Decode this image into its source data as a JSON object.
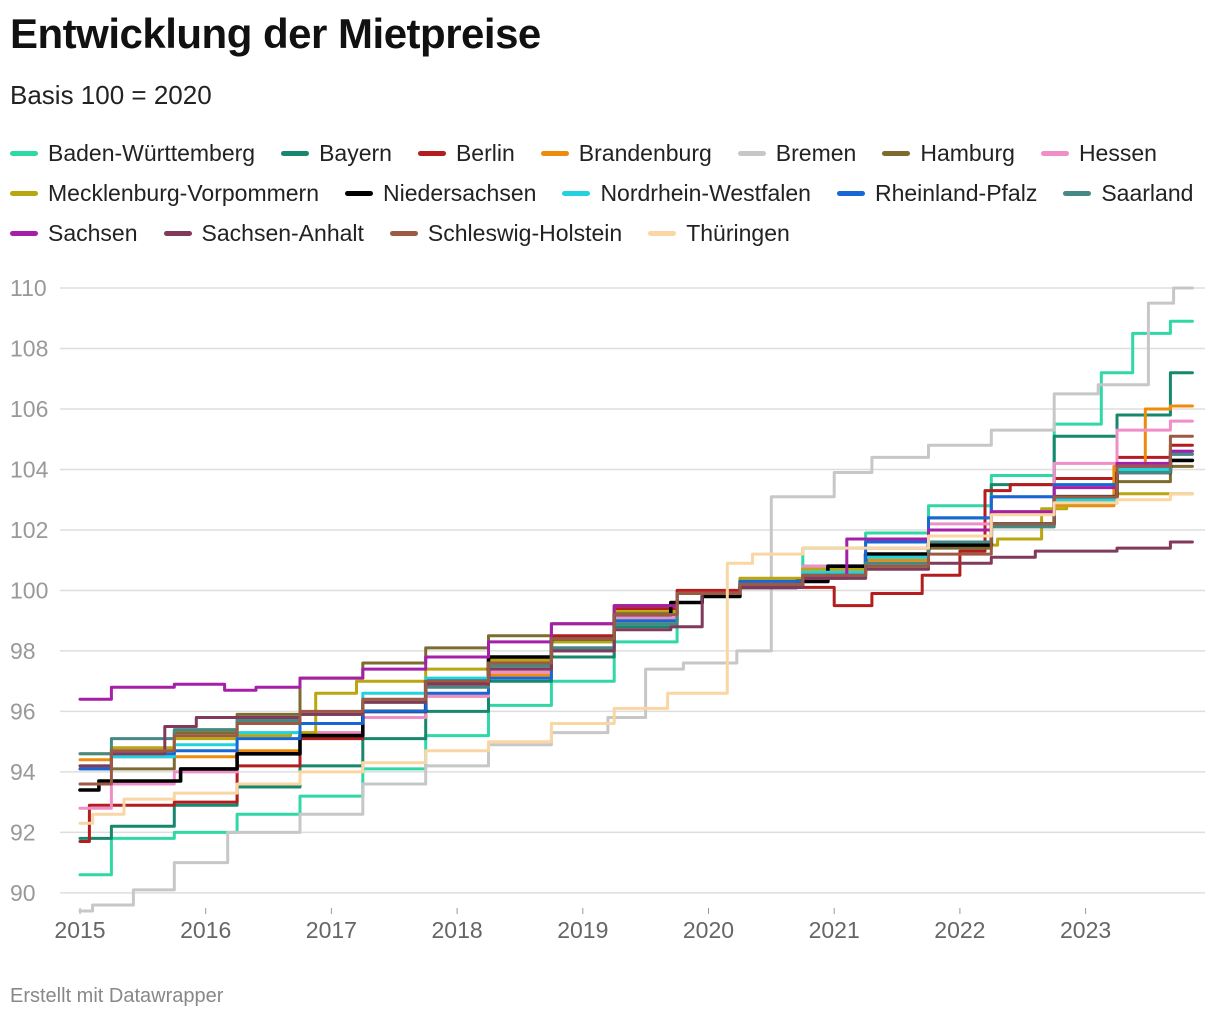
{
  "title": "Entwicklung der Mietpreise",
  "subtitle": "Basis 100 = 2020",
  "footer": "Erstellt mit Datawrapper",
  "chart_data": {
    "type": "line",
    "grid": true,
    "legend_position": "top",
    "ylim": [
      89.5,
      110
    ],
    "yticks": [
      90,
      92,
      94,
      96,
      98,
      100,
      102,
      104,
      106,
      108,
      110
    ],
    "xlim": [
      2015,
      2023.95
    ],
    "xticks": [
      2015,
      2016,
      2017,
      2018,
      2019,
      2020,
      2021,
      2022,
      2023
    ],
    "series": [
      {
        "name": "Baden-Württemberg",
        "color": "#2fd8a5",
        "x": [
          2015,
          2015.5,
          2016,
          2016.5,
          2017,
          2017.5,
          2018,
          2018.5,
          2019,
          2019.5,
          2020,
          2020.5,
          2021,
          2021.5,
          2022,
          2022.5,
          2023,
          2023.25,
          2023.5,
          2023.85
        ],
        "y": [
          90.6,
          91.8,
          92.0,
          92.6,
          93.2,
          94.1,
          95.2,
          96.2,
          97.0,
          98.3,
          99.9,
          100.3,
          101.4,
          101.9,
          102.8,
          103.8,
          105.5,
          107.2,
          108.5,
          108.9
        ]
      },
      {
        "name": "Bayern",
        "color": "#17876d",
        "x": [
          2015,
          2015.5,
          2016,
          2016.5,
          2017,
          2017.5,
          2018,
          2018.5,
          2019,
          2019.5,
          2020,
          2020.5,
          2021,
          2021.5,
          2022,
          2022.5,
          2023,
          2023.5,
          2023.85
        ],
        "y": [
          91.8,
          92.2,
          92.9,
          93.5,
          94.2,
          95.1,
          96.0,
          97.0,
          97.8,
          98.8,
          99.9,
          100.3,
          100.8,
          101.4,
          102.4,
          103.5,
          105.1,
          105.8,
          107.2
        ]
      },
      {
        "name": "Berlin",
        "color": "#b31d1d",
        "x": [
          2015,
          2015.15,
          2015.5,
          2016,
          2016.5,
          2017,
          2017.5,
          2018,
          2018.5,
          2019,
          2019.5,
          2020,
          2020.5,
          2020.9,
          2021.1,
          2021.5,
          2021.9,
          2022.1,
          2022.3,
          2022.5,
          2023,
          2023.5,
          2023.85
        ],
        "y": [
          91.7,
          92.9,
          92.9,
          93.0,
          94.2,
          95.1,
          95.8,
          97.0,
          97.8,
          98.5,
          99.4,
          100.0,
          100.2,
          100.1,
          99.5,
          99.9,
          100.5,
          101.3,
          103.3,
          103.5,
          103.7,
          104.4,
          104.8
        ]
      },
      {
        "name": "Brandenburg",
        "color": "#ef8b0c",
        "x": [
          2015,
          2015.5,
          2016,
          2016.5,
          2017,
          2017.5,
          2018,
          2018.5,
          2019,
          2019.5,
          2020,
          2020.5,
          2021,
          2021.5,
          2022,
          2022.5,
          2023,
          2023.45,
          2023.5,
          2023.85
        ],
        "y": [
          94.4,
          94.5,
          94.5,
          94.7,
          95.3,
          95.8,
          96.5,
          97.2,
          98.0,
          99.0,
          99.9,
          100.2,
          100.6,
          101.0,
          101.6,
          102.2,
          102.8,
          104.1,
          106.0,
          106.1
        ]
      },
      {
        "name": "Bremen",
        "color": "#c7c7c7",
        "x": [
          2015,
          2015.2,
          2015.65,
          2015.85,
          2016.5,
          2017,
          2017.5,
          2018,
          2018.5,
          2019,
          2019.4,
          2019.6,
          2020,
          2020.45,
          2020.55,
          2020.9,
          2021.1,
          2021.5,
          2022,
          2022.5,
          2023,
          2023.2,
          2023.45,
          2023.55,
          2023.85
        ],
        "y": [
          89.4,
          89.6,
          90.1,
          91.0,
          92.0,
          92.6,
          93.6,
          94.2,
          94.9,
          95.3,
          95.8,
          97.4,
          97.6,
          98.0,
          103.1,
          103.1,
          103.9,
          104.4,
          104.8,
          105.3,
          106.5,
          106.8,
          106.8,
          109.5,
          110.0
        ]
      },
      {
        "name": "Hamburg",
        "color": "#7d6b30",
        "x": [
          2015,
          2015.5,
          2016,
          2016.5,
          2017,
          2017.5,
          2018,
          2018.5,
          2019,
          2019.5,
          2020,
          2020.5,
          2021,
          2021.5,
          2022,
          2022.5,
          2023,
          2023.5,
          2023.85
        ],
        "y": [
          94.1,
          94.1,
          95.3,
          95.9,
          97.1,
          97.6,
          98.1,
          98.5,
          98.9,
          99.5,
          99.9,
          100.1,
          100.5,
          100.8,
          101.4,
          102.6,
          103.0,
          103.6,
          104.1
        ]
      },
      {
        "name": "Hessen",
        "color": "#f08fc7",
        "x": [
          2015,
          2015.5,
          2016,
          2016.5,
          2017,
          2017.5,
          2018,
          2018.5,
          2019,
          2019.5,
          2020,
          2020.5,
          2021,
          2021.5,
          2022,
          2022.5,
          2023,
          2023.5,
          2023.85
        ],
        "y": [
          92.8,
          93.6,
          94.0,
          94.6,
          95.3,
          95.8,
          96.5,
          97.3,
          98.3,
          99.1,
          99.9,
          100.2,
          100.8,
          101.4,
          102.2,
          103.1,
          104.2,
          105.3,
          105.6
        ]
      },
      {
        "name": "Mecklenburg-Vorpommern",
        "color": "#b9a610",
        "x": [
          2015,
          2015.5,
          2016,
          2016.5,
          2016.85,
          2016.9,
          2017.5,
          2018,
          2018.5,
          2019,
          2019.5,
          2020,
          2020.5,
          2021,
          2021.5,
          2022,
          2022.6,
          2022.7,
          2023,
          2023.5,
          2023.85
        ],
        "y": [
          94.6,
          94.8,
          95.1,
          95.2,
          95.3,
          96.6,
          97.0,
          97.4,
          97.7,
          98.3,
          99.3,
          99.9,
          100.4,
          100.7,
          101.1,
          101.5,
          101.7,
          102.7,
          102.9,
          103.2,
          103.2
        ]
      },
      {
        "name": "Niedersachsen",
        "color": "#000000",
        "x": [
          2015,
          2015.3,
          2015.6,
          2016,
          2016.5,
          2017,
          2017.5,
          2018,
          2018.5,
          2019,
          2019.5,
          2019.9,
          2020,
          2020.5,
          2020.9,
          2021,
          2021.5,
          2022,
          2022.5,
          2023,
          2023.5,
          2023.85
        ],
        "y": [
          93.4,
          93.7,
          93.7,
          94.1,
          94.6,
          95.2,
          96.0,
          97.0,
          97.8,
          98.4,
          99.2,
          99.6,
          99.8,
          100.1,
          100.3,
          100.8,
          101.2,
          101.5,
          102.2,
          103.1,
          103.9,
          104.3
        ]
      },
      {
        "name": "Nordrhein-Westfalen",
        "color": "#21d3de",
        "x": [
          2015,
          2015.5,
          2016,
          2016.5,
          2017,
          2017.5,
          2018,
          2018.5,
          2019,
          2019.5,
          2020,
          2020.5,
          2021,
          2021.5,
          2022,
          2022.5,
          2023,
          2023.5,
          2023.85
        ],
        "y": [
          94.2,
          94.5,
          94.9,
          95.3,
          95.9,
          96.6,
          97.1,
          97.6,
          98.4,
          99.2,
          99.9,
          100.2,
          100.6,
          101.1,
          101.6,
          102.2,
          103.0,
          104.0,
          104.6
        ]
      },
      {
        "name": "Rheinland-Pfalz",
        "color": "#1768d4",
        "x": [
          2015,
          2015.5,
          2016,
          2016.5,
          2017,
          2017.5,
          2018,
          2018.5,
          2019,
          2019.5,
          2020,
          2020.5,
          2021,
          2021.5,
          2022,
          2022.5,
          2023,
          2023.5,
          2023.85
        ],
        "y": [
          94.1,
          94.6,
          94.7,
          95.1,
          95.6,
          96.0,
          96.6,
          97.1,
          98.1,
          99.0,
          99.9,
          100.3,
          100.5,
          101.6,
          102.4,
          103.1,
          103.5,
          104.1,
          104.5
        ]
      },
      {
        "name": "Saarland",
        "color": "#448984",
        "x": [
          2015,
          2015.5,
          2016,
          2016.5,
          2017,
          2017.5,
          2018,
          2018.5,
          2019,
          2019.5,
          2020,
          2020.5,
          2021,
          2021.5,
          2022,
          2022.5,
          2023,
          2023.5,
          2023.85
        ],
        "y": [
          94.6,
          95.1,
          95.4,
          95.7,
          95.9,
          96.3,
          96.8,
          97.5,
          98.1,
          98.9,
          99.9,
          100.2,
          100.4,
          100.9,
          101.6,
          102.1,
          102.9,
          103.9,
          104.5
        ]
      },
      {
        "name": "Sachsen",
        "color": "#a51fa8",
        "x": [
          2015,
          2015.5,
          2016,
          2016.3,
          2016.5,
          2017,
          2017.5,
          2018,
          2018.5,
          2019,
          2019.5,
          2020,
          2020.5,
          2021,
          2021.2,
          2021.5,
          2022,
          2022.5,
          2023,
          2023.5,
          2023.85
        ],
        "y": [
          96.4,
          96.8,
          96.9,
          96.7,
          96.8,
          97.1,
          97.4,
          97.8,
          98.3,
          98.9,
          99.5,
          99.9,
          100.1,
          100.4,
          101.7,
          101.7,
          102.0,
          102.6,
          103.4,
          104.2,
          104.6
        ]
      },
      {
        "name": "Sachsen-Anhalt",
        "color": "#813a5b",
        "x": [
          2015,
          2015.5,
          2015.85,
          2016,
          2016.5,
          2017,
          2017.5,
          2018,
          2018.5,
          2019,
          2019.5,
          2019.9,
          2020,
          2020.5,
          2021,
          2021.5,
          2022,
          2022.5,
          2022.7,
          2023,
          2023.5,
          2023.85
        ],
        "y": [
          94.2,
          94.6,
          95.5,
          95.8,
          95.8,
          95.9,
          96.3,
          96.9,
          97.4,
          98.0,
          98.7,
          98.8,
          99.9,
          100.1,
          100.4,
          100.7,
          100.9,
          101.1,
          101.3,
          101.3,
          101.4,
          101.6
        ]
      },
      {
        "name": "Schleswig-Holstein",
        "color": "#9c5a44",
        "x": [
          2015,
          2015.5,
          2016,
          2016.5,
          2017,
          2017.5,
          2018,
          2018.5,
          2019,
          2019.5,
          2020,
          2020.5,
          2021,
          2021.5,
          2022,
          2022.5,
          2023,
          2023.5,
          2023.85
        ],
        "y": [
          93.6,
          94.7,
          95.2,
          95.6,
          96.0,
          96.4,
          97.0,
          97.6,
          98.4,
          99.2,
          99.9,
          100.2,
          100.5,
          100.8,
          101.2,
          102.2,
          103.1,
          104.1,
          105.1
        ]
      },
      {
        "name": "Thüringen",
        "color": "#f9d6a4",
        "x": [
          2015,
          2015.2,
          2015.5,
          2016,
          2016.5,
          2017,
          2017.5,
          2018,
          2018.5,
          2019,
          2019.5,
          2019.85,
          2020.1,
          2020.2,
          2020.5,
          2021,
          2021.5,
          2022,
          2022.5,
          2023,
          2023.5,
          2023.85
        ],
        "y": [
          92.3,
          92.6,
          93.1,
          93.3,
          93.6,
          94.0,
          94.3,
          94.7,
          95.0,
          95.6,
          96.1,
          96.6,
          96.6,
          100.9,
          101.2,
          101.4,
          101.4,
          101.8,
          102.5,
          102.9,
          103.0,
          103.2
        ]
      }
    ]
  }
}
